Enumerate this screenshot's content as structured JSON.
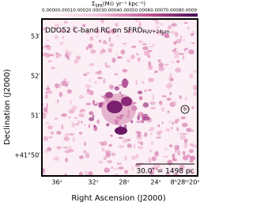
{
  "colorbar": {
    "label": "Σ",
    "label_sub": "SFR",
    "label_units": "(M⊙ yr⁻¹ kpc⁻²)",
    "tick_text": "0.00000.00010.00020.00030.00040.00050.00060.00070.00080.0009"
  },
  "panel": {
    "label": "DDO52   C-band RC on SFRD",
    "label_sub": "FUV+24μm",
    "scale_bar": "30.0″ = 1498 pc",
    "beam": "b"
  },
  "axes": {
    "x_label": "Right Ascension (J2000)",
    "y_label": "Declination (J2000)",
    "x_ticks": [
      "36ˢ",
      "32ˢ",
      "28ˢ",
      "24ˢ",
      "8ʰ28ᵐ20ˢ"
    ],
    "y_ticks": [
      "53′",
      "52′",
      "51′",
      "+41°50′"
    ]
  }
}
